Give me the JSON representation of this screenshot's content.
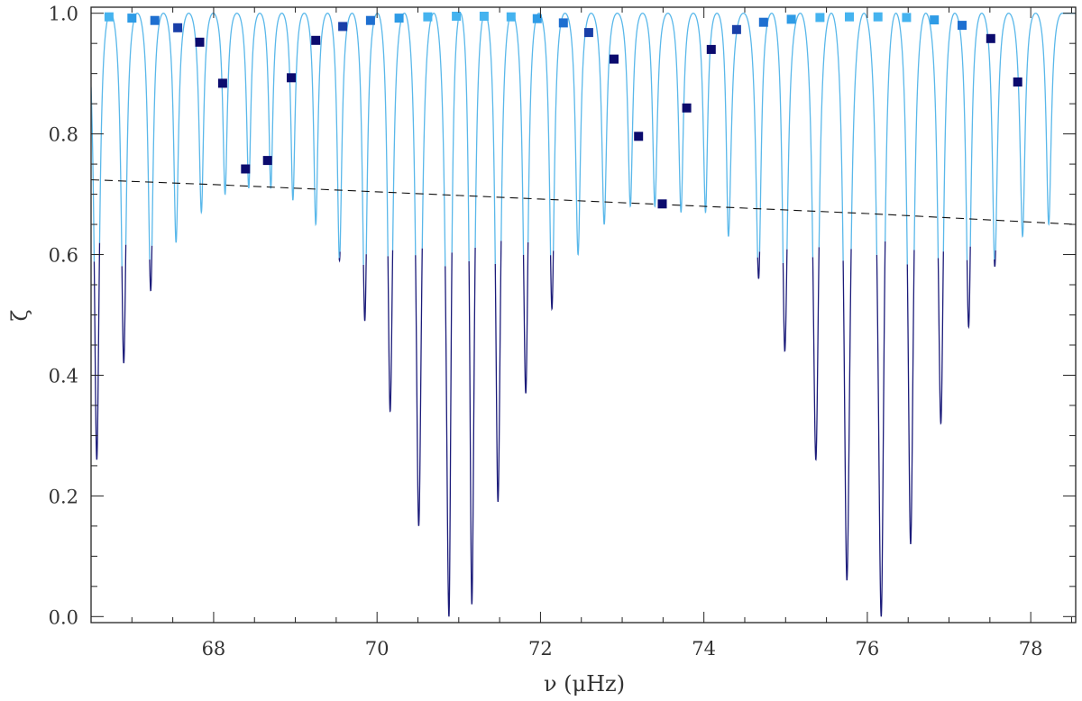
{
  "chart_data": {
    "type": "line",
    "title": "",
    "xlabel": "ν (μHz)",
    "ylabel": "ζ",
    "xlim": [
      66.5,
      78.55
    ],
    "ylim": [
      -0.01,
      1.01
    ],
    "x_ticks": [
      68,
      70,
      72,
      74,
      76,
      78
    ],
    "x_tick_labels": [
      "68",
      "70",
      "72",
      "74",
      "76",
      "78"
    ],
    "y_ticks": [
      0.0,
      0.2,
      0.4,
      0.6,
      0.8,
      1.0
    ],
    "y_tick_labels": [
      "0.0",
      "0.2",
      "0.4",
      "0.6",
      "0.8",
      "1.0"
    ],
    "grid": false,
    "colors": {
      "curve_dark": "#1c1c7a",
      "curve_light": "#5ab8ea",
      "dashed": "#111111",
      "axis": "#222222",
      "marker_palette": [
        "#0b0b6e",
        "#1a3fa8",
        "#1e6fd0",
        "#2e9be6",
        "#45b3ef"
      ]
    },
    "series": [
      {
        "style": "solid",
        "description_type": "zeta_function",
        "minima": [
          {
            "x": 66.57,
            "y": 0.26
          },
          {
            "x": 66.9,
            "y": 0.42
          },
          {
            "x": 67.23,
            "y": 0.54
          },
          {
            "x": 67.54,
            "y": 0.62
          },
          {
            "x": 67.85,
            "y": 0.67
          },
          {
            "x": 68.14,
            "y": 0.7
          },
          {
            "x": 68.43,
            "y": 0.71
          },
          {
            "x": 68.7,
            "y": 0.71
          },
          {
            "x": 68.97,
            "y": 0.69
          },
          {
            "x": 69.25,
            "y": 0.65
          },
          {
            "x": 69.54,
            "y": 0.59
          },
          {
            "x": 69.85,
            "y": 0.49
          },
          {
            "x": 70.16,
            "y": 0.34
          },
          {
            "x": 70.51,
            "y": 0.15
          },
          {
            "x": 70.88,
            "y": 0.0
          },
          {
            "x": 71.16,
            "y": 0.02
          },
          {
            "x": 71.48,
            "y": 0.19
          },
          {
            "x": 71.82,
            "y": 0.37
          },
          {
            "x": 72.14,
            "y": 0.51
          },
          {
            "x": 72.46,
            "y": 0.6
          },
          {
            "x": 72.78,
            "y": 0.65
          },
          {
            "x": 73.1,
            "y": 0.68
          },
          {
            "x": 73.4,
            "y": 0.68
          },
          {
            "x": 73.72,
            "y": 0.67
          },
          {
            "x": 74.02,
            "y": 0.67
          },
          {
            "x": 74.3,
            "y": 0.63
          },
          {
            "x": 74.67,
            "y": 0.56
          },
          {
            "x": 74.99,
            "y": 0.44
          },
          {
            "x": 75.37,
            "y": 0.26
          },
          {
            "x": 75.75,
            "y": 0.06
          },
          {
            "x": 76.17,
            "y": 0.0
          },
          {
            "x": 76.53,
            "y": 0.12
          },
          {
            "x": 76.9,
            "y": 0.32
          },
          {
            "x": 77.24,
            "y": 0.48
          },
          {
            "x": 77.56,
            "y": 0.58
          },
          {
            "x": 77.9,
            "y": 0.63
          },
          {
            "x": 78.22,
            "y": 0.65
          }
        ]
      },
      {
        "style": "dashed",
        "points": [
          {
            "x": 66.5,
            "y": 0.724
          },
          {
            "x": 68.0,
            "y": 0.716
          },
          {
            "x": 72.0,
            "y": 0.692
          },
          {
            "x": 76.0,
            "y": 0.668
          },
          {
            "x": 78.55,
            "y": 0.65
          }
        ]
      },
      {
        "style": "markers",
        "points": [
          {
            "x": 66.72,
            "y": 0.994
          },
          {
            "x": 67.0,
            "y": 0.992
          },
          {
            "x": 67.28,
            "y": 0.988
          },
          {
            "x": 67.56,
            "y": 0.976
          },
          {
            "x": 67.83,
            "y": 0.952
          },
          {
            "x": 68.11,
            "y": 0.884
          },
          {
            "x": 68.39,
            "y": 0.742
          },
          {
            "x": 68.66,
            "y": 0.756
          },
          {
            "x": 68.95,
            "y": 0.893
          },
          {
            "x": 69.25,
            "y": 0.955
          },
          {
            "x": 69.58,
            "y": 0.978
          },
          {
            "x": 69.92,
            "y": 0.988
          },
          {
            "x": 70.27,
            "y": 0.992
          },
          {
            "x": 70.62,
            "y": 0.994
          },
          {
            "x": 70.97,
            "y": 0.995
          },
          {
            "x": 71.31,
            "y": 0.995
          },
          {
            "x": 71.64,
            "y": 0.994
          },
          {
            "x": 71.96,
            "y": 0.991
          },
          {
            "x": 72.28,
            "y": 0.984
          },
          {
            "x": 72.59,
            "y": 0.968
          },
          {
            "x": 72.9,
            "y": 0.924
          },
          {
            "x": 73.2,
            "y": 0.796
          },
          {
            "x": 73.49,
            "y": 0.684
          },
          {
            "x": 73.79,
            "y": 0.843
          },
          {
            "x": 74.09,
            "y": 0.94
          },
          {
            "x": 74.4,
            "y": 0.973
          },
          {
            "x": 74.73,
            "y": 0.985
          },
          {
            "x": 75.07,
            "y": 0.99
          },
          {
            "x": 75.42,
            "y": 0.993
          },
          {
            "x": 75.78,
            "y": 0.994
          },
          {
            "x": 76.13,
            "y": 0.994
          },
          {
            "x": 76.48,
            "y": 0.993
          },
          {
            "x": 76.82,
            "y": 0.989
          },
          {
            "x": 77.16,
            "y": 0.98
          },
          {
            "x": 77.51,
            "y": 0.958
          },
          {
            "x": 77.84,
            "y": 0.886
          }
        ]
      }
    ]
  }
}
